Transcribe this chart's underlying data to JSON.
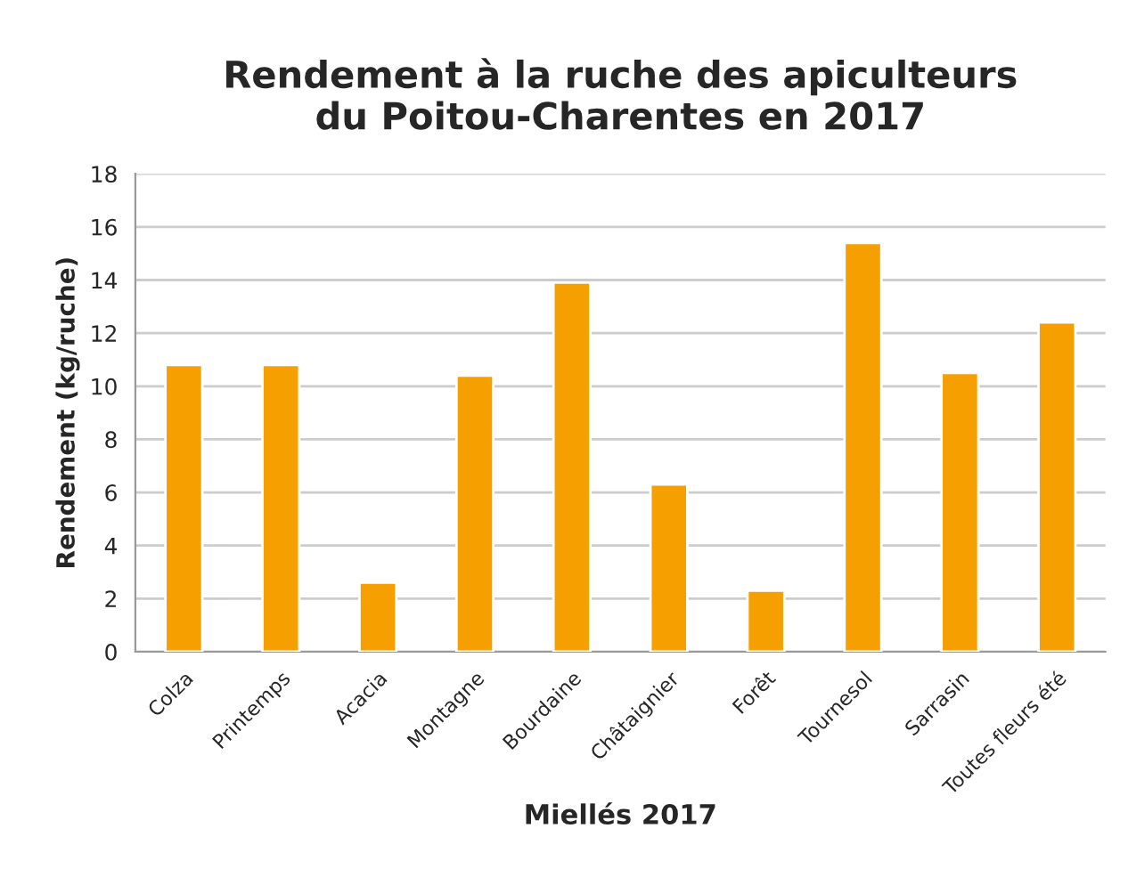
{
  "chart_data": {
    "type": "bar",
    "title": "Rendement à la ruche des apiculteurs\ndu Poitou-Charentes en 2017",
    "xlabel": "Miellés 2017",
    "ylabel": "Rendement (kg/ruche)",
    "categories": [
      "Colza",
      "Printemps",
      "Acacia",
      "Montagne",
      "Bourdaine",
      "Châtaignier",
      "Forêt",
      "Tournesol",
      "Sarrasin",
      "Toutes fleurs été"
    ],
    "values": [
      10.8,
      10.8,
      2.6,
      10.4,
      13.9,
      6.3,
      2.3,
      15.4,
      10.5,
      12.4
    ],
    "color": "#f5a000",
    "ylim": [
      0,
      18
    ],
    "yticks": [
      0,
      2,
      4,
      6,
      8,
      10,
      12,
      14,
      16,
      18
    ],
    "grid": "y"
  }
}
